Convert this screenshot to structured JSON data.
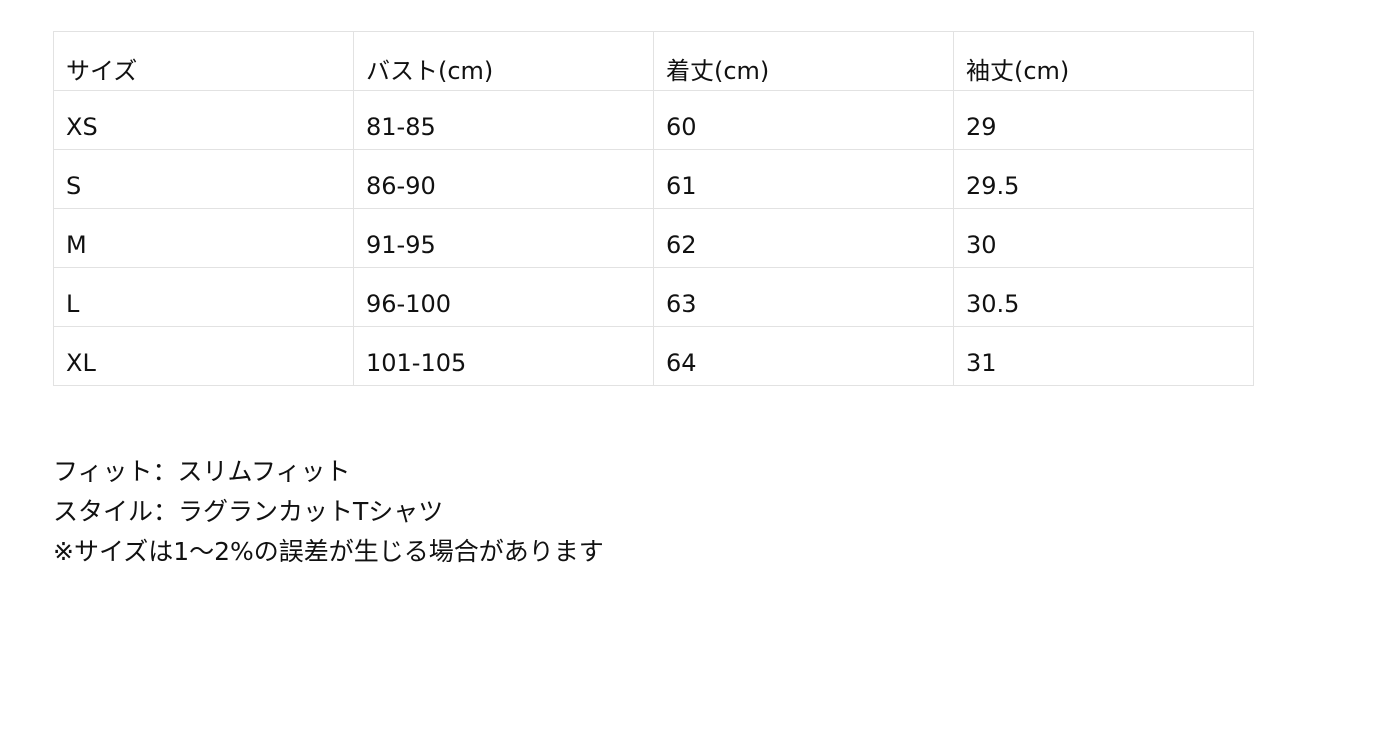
{
  "size_table": {
    "headers": [
      "サイズ",
      "バスト(cm)",
      "着丈(cm)",
      "袖丈(cm)"
    ],
    "rows": [
      [
        "XS",
        "81-85",
        "60",
        "29"
      ],
      [
        "S",
        "86-90",
        "61",
        "29.5"
      ],
      [
        "M",
        "91-95",
        "62",
        "30"
      ],
      [
        "L",
        "96-100",
        "63",
        "30.5"
      ],
      [
        "XL",
        "101-105",
        "64",
        "31"
      ]
    ]
  },
  "notes": [
    "フィット：スリムフィット",
    "スタイル：ラグランカットTシャツ",
    "※サイズは1～2%の誤差が生じる場合があります"
  ]
}
